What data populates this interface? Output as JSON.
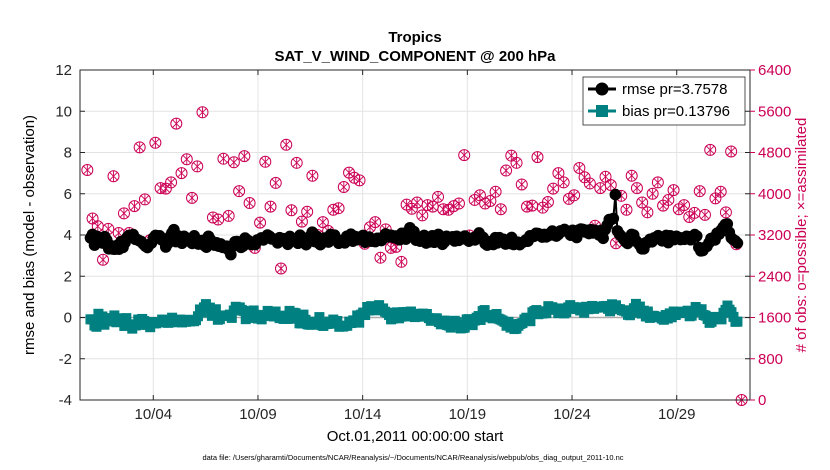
{
  "chart_data": {
    "type": "line",
    "title": "Tropics",
    "subtitle": "SAT_V_WIND_COMPONENT @ 200 hPa",
    "xlabel": "Oct.01,2011 00:00:00 start",
    "ylabel": "rmse and bias (model - observation)",
    "y2label": "# of obs: o=possible; ×=assimilated",
    "footer": "data file: /Users/gharamti/Documents/NCAR/Reanalysis/~/Documents/NCAR/Reanalysis/webpub/obs_diag_output_2011-10.nc",
    "xlim": [
      0.5,
      32.5
    ],
    "ylim": [
      -4,
      12
    ],
    "y2lim": [
      0,
      6400
    ],
    "xticks": [
      {
        "day": 4,
        "label": "10/04"
      },
      {
        "day": 9,
        "label": "10/09"
      },
      {
        "day": 14,
        "label": "10/14"
      },
      {
        "day": 19,
        "label": "10/19"
      },
      {
        "day": 24,
        "label": "10/24"
      },
      {
        "day": 29,
        "label": "10/29"
      }
    ],
    "yticks": [
      "-4",
      "-2",
      "0",
      "2",
      "4",
      "6",
      "8",
      "10",
      "12"
    ],
    "y2ticks": [
      "0",
      "800",
      "1600",
      "2400",
      "3200",
      "4000",
      "4800",
      "5600",
      "6400"
    ],
    "grid": true,
    "legend_position": "top-right",
    "colors": {
      "rmse": "#000000",
      "bias": "#008080",
      "obs": "#cc0055",
      "zero": "#aaaaaa"
    },
    "series": [
      {
        "name": "rmse pr=3.7578",
        "axis": "left",
        "values": [
          3.86,
          4.03,
          3.51,
          3.94,
          3.87,
          3.83,
          3.61,
          3.92,
          3.76,
          3.33,
          3.48,
          3.32,
          3.31,
          3.49,
          3.31,
          3.68,
          3.4,
          3.63,
          3.88,
          3.98,
          3.94,
          4.02,
          3.79,
          3.78,
          3.72,
          3.68,
          3.56,
          3.46,
          3.39,
          3.54,
          3.61,
          3.87,
          3.98,
          3.93,
          3.96,
          3.76,
          3.74,
          3.42,
          3.58,
          3.91,
          4.1,
          4.26,
          3.68,
          3.96,
          3.84,
          3.6,
          3.94,
          3.75,
          3.77,
          3.8,
          3.59,
          3.96,
          3.75,
          3.56,
          3.6,
          3.74,
          3.49,
          3.41,
          3.94,
          3.77,
          3.6,
          3.51,
          3.62,
          3.46,
          3.57,
          3.4,
          3.39,
          3.46,
          3.26,
          3.05,
          3.46,
          3.67,
          3.68,
          3.47,
          3.4,
          3.46,
          3.85,
          3.76,
          3.7,
          3.54,
          3.63,
          3.54,
          3.76,
          3.76,
          3.86,
          3.76,
          3.88,
          4.0,
          3.94,
          3.81,
          3.81,
          3.78,
          3.62,
          3.87,
          3.77,
          3.82,
          3.72,
          3.55,
          3.93,
          3.76,
          3.72,
          3.75,
          3.6,
          3.99,
          3.78,
          3.76,
          3.53,
          3.67,
          3.95,
          4.14,
          3.69,
          3.95,
          3.62,
          3.53,
          3.63,
          3.85,
          3.71,
          3.66,
          4.02,
          3.84,
          3.99,
          3.76,
          3.6,
          3.73,
          3.74,
          3.62,
          3.94,
          3.87,
          4.04,
          3.7,
          3.93,
          3.77,
          3.89,
          3.91,
          3.98,
          3.65,
          3.77,
          3.9,
          3.7,
          3.73,
          3.68,
          3.84,
          3.84,
          3.73,
          3.86,
          4.05,
          3.91,
          3.99,
          3.98,
          3.88,
          3.95,
          3.82,
          3.77,
          4.08,
          4.0,
          3.8,
          4.17,
          4.35,
          4.01,
          4.17,
          3.75,
          3.88,
          3.7,
          3.73,
          3.98,
          3.61,
          3.69,
          3.67,
          3.96,
          3.65,
          3.93,
          4.03,
          3.75,
          3.55,
          3.66,
          3.94,
          3.82,
          3.89,
          3.91,
          3.71,
          3.94,
          3.74,
          3.88,
          3.82,
          3.95,
          3.86,
          3.7,
          3.82,
          3.86,
          3.76,
          3.95,
          4.1,
          3.86,
          3.88,
          3.58,
          3.51,
          3.67,
          3.59,
          3.54,
          3.87,
          3.62,
          3.87,
          3.78,
          3.79,
          3.56,
          3.69,
          3.59,
          3.88,
          3.54,
          3.59,
          3.65,
          3.53,
          3.63,
          3.67,
          3.76,
          3.7,
          3.96,
          3.91,
          3.94,
          4.08,
          4.07,
          4.02,
          3.9,
          4.03,
          3.91,
          3.96,
          4.09,
          4.19,
          3.99,
          3.95,
          4.03,
          4.2,
          4.18,
          4.27,
          4.2,
          4.16,
          3.99,
          4.23,
          4.06,
          3.88,
          4.24,
          4.29,
          4.27,
          4.15,
          4.23,
          4.07,
          4.26,
          4.1,
          4.23,
          4.17,
          4.0,
          4.22,
          3.84,
          4.26,
          4.48,
          4.75,
          4.75,
          4.8,
          5.96,
          4.2,
          4.04,
          3.93,
          3.8,
          3.68,
          3.59,
          3.77,
          4.03,
          4.0,
          3.74,
          3.63,
          3.51,
          3.33,
          3.33,
          3.63,
          3.64,
          3.79,
          3.67,
          3.86,
          3.83,
          3.97,
          3.88,
          3.72,
          3.9,
          3.98,
          3.63,
          3.96,
          3.85,
          3.78,
          3.94,
          3.88,
          3.78,
          3.86,
          3.79,
          3.94,
          3.91,
          3.77,
          3.93,
          4.02,
          3.95,
          3.4,
          3.23,
          3.25,
          3.39,
          3.45,
          3.62,
          3.83,
          3.86,
          3.76,
          4.09,
          4.04,
          4.24,
          4.38,
          4.51,
          4.54,
          4.13,
          3.86,
          3.77,
          3.71,
          3.61
        ]
      },
      {
        "name": "bias pr=0.13796",
        "axis": "left",
        "values": [
          -0.09,
          -0.09,
          -0.39,
          -0.45,
          0.18,
          0.04,
          0.05,
          -0.35,
          -0.12,
          -0.07,
          -0.03,
          -0.19,
          0.1,
          -0.23,
          -0.13,
          -0.04,
          -0.11,
          -0.41,
          -0.03,
          -0.33,
          -0.38,
          -0.54,
          -0.39,
          -0.38,
          -0.1,
          -0.29,
          -0.07,
          -0.17,
          -0.36,
          -0.28,
          -0.47,
          -0.22,
          -0.29,
          -0.28,
          -0.22,
          -0.24,
          -0.1,
          -0.22,
          -0.15,
          -0.26,
          -0.23,
          -0.01,
          -0.23,
          -0.12,
          -0.2,
          -0.1,
          -0.24,
          -0.13,
          -0.21,
          -0.11,
          -0.19,
          -0.14,
          -0.18,
          -0.13,
          0.06,
          0.39,
          0.24,
          0.49,
          0.65,
          0.45,
          0.48,
          0.08,
          0.24,
          0.4,
          -0.11,
          -0.08,
          0.07,
          0.08,
          0.1,
          0.08,
          0.14,
          -0.02,
          0.34,
          0.52,
          0.44,
          0.49,
          0.37,
          0.32,
          -0.08,
          0.06,
          0.27,
          -0.02,
          0.34,
          0.13,
          -0.05,
          0.06,
          -0.09,
          0.07,
          0.12,
          0.32,
          0.2,
          0.15,
          0.05,
          0.29,
          0.05,
          -0.03,
          0.09,
          -0.07,
          -0.06,
          -0.07,
          0.32,
          0.21,
          0.23,
          0.21,
          -0.06,
          -0.28,
          -0.29,
          0.14,
          -0.11,
          -0.33,
          -0.35,
          -0.35,
          -0.25,
          -0.2,
          -0.22,
          0.02,
          -0.37,
          -0.41,
          -0.32,
          -0.31,
          -0.2,
          -0.22,
          -0.1,
          -0.3,
          -0.17,
          -0.45,
          -0.43,
          -0.44,
          -0.4,
          -0.4,
          -0.2,
          -0.27,
          -0.14,
          -0.2,
          0.1,
          -0.25,
          0.14,
          0.24,
          0.12,
          0.51,
          0.34,
          0.55,
          0.48,
          0.48,
          0.35,
          0.6,
          0.36,
          0.44,
          0.28,
          0.23,
          0.12,
          -0.09,
          -0.05,
          0.01,
          0.25,
          -0.04,
          0.04,
          0.26,
          0.25,
          0.27,
          0.05,
          0.29,
          0.1,
          0.02,
          0.18,
          0.04,
          0.17,
          0.19,
          0.13,
          0.17,
          -0.03,
          -0.16,
          -0.1,
          -0.04,
          -0.04,
          -0.22,
          -0.33,
          -0.16,
          -0.15,
          -0.36,
          -0.39,
          -0.49,
          -0.25,
          -0.16,
          -0.23,
          -0.36,
          -0.53,
          -0.51,
          -0.49,
          -0.09,
          -0.08,
          -0.13,
          -0.37,
          -0.15,
          -0.01,
          0.07,
          -0.12,
          0.31,
          0.36,
          0.07,
          0.12,
          0.01,
          -0.04,
          0.06,
          0.17,
          -0.06,
          -0.1,
          -0.15,
          -0.21,
          -0.4,
          -0.21,
          -0.49,
          -0.32,
          -0.56,
          -0.54,
          -0.4,
          -0.31,
          -0.27,
          -0.09,
          -0.01,
          -0.14,
          -0.18,
          0.25,
          0.31,
          0.36,
          0.16,
          0.23,
          0.19,
          0.3,
          0.21,
          0.55,
          0.37,
          0.5,
          0.4,
          0.42,
          0.21,
          0.44,
          0.3,
          0.2,
          0.26,
          0.49,
          0.6,
          0.45,
          0.5,
          0.41,
          0.49,
          0.34,
          0.4,
          0.23,
          0.52,
          0.4,
          0.43,
          0.56,
          0.42,
          0.48,
          0.53,
          0.48,
          0.52,
          0.55,
          0.56,
          0.42,
          0.3,
          0.64,
          0.43,
          0.59,
          0.41,
          0.4,
          0.35,
          0.33,
          0.29,
          0.13,
          0.11,
          0.35,
          0.45,
          0.66,
          0.23,
          0.53,
          0.19,
          0.33,
          0.05,
          0.29,
          -0.02,
          0.08,
          0.08,
          0.03,
          0.01,
          0.04,
          -0.05,
          -0.11,
          0.12,
          -0.05,
          0.2,
          0.01,
          0.29,
          0.12,
          0.21,
          0.27,
          0.22,
          0.28,
          0.28,
          0.33,
          0.06,
          0.09,
          0.25,
          0.51,
          0.4,
          0.32,
          0.4,
          0.12,
          0.09,
          -0.07,
          -0.26,
          -0.21,
          -0.08,
          0.03,
          -0.01,
          0.02,
          -0.09,
          0.23,
          0.37,
          0.58,
          0.38,
          0.26,
          0.03,
          -0.21,
          -0.2
        ]
      },
      {
        "name": "# of obs possible / assimilated",
        "axis": "right",
        "points": [
          [
            0.85,
            4460
          ],
          [
            1.1,
            3520
          ],
          [
            1.35,
            3370
          ],
          [
            1.6,
            2720
          ],
          [
            1.85,
            3320
          ],
          [
            2.1,
            4340
          ],
          [
            2.35,
            3240
          ],
          [
            2.6,
            3620
          ],
          [
            2.85,
            3240
          ],
          [
            3.1,
            3760
          ],
          [
            3.35,
            4900
          ],
          [
            3.6,
            3890
          ],
          [
            3.85,
            3100
          ],
          [
            4.1,
            4990
          ],
          [
            4.35,
            4110
          ],
          [
            4.6,
            4100
          ],
          [
            4.85,
            4220
          ],
          [
            5.1,
            5360
          ],
          [
            5.35,
            4400
          ],
          [
            5.6,
            4670
          ],
          [
            5.85,
            3920
          ],
          [
            6.1,
            4530
          ],
          [
            6.35,
            5580
          ],
          [
            6.6,
            3070
          ],
          [
            6.85,
            3540
          ],
          [
            7.1,
            3500
          ],
          [
            7.35,
            4680
          ],
          [
            7.6,
            3570
          ],
          [
            7.85,
            4610
          ],
          [
            8.1,
            4050
          ],
          [
            8.35,
            4730
          ],
          [
            8.6,
            3820
          ],
          [
            8.85,
            2950
          ],
          [
            9.1,
            3440
          ],
          [
            9.35,
            4620
          ],
          [
            9.6,
            3750
          ],
          [
            9.85,
            4210
          ],
          [
            10.1,
            2550
          ],
          [
            10.35,
            4950
          ],
          [
            10.6,
            3680
          ],
          [
            10.85,
            4600
          ],
          [
            11.1,
            3460
          ],
          [
            11.35,
            3650
          ],
          [
            11.6,
            4350
          ],
          [
            11.85,
            3200
          ],
          [
            12.1,
            3450
          ],
          [
            12.35,
            3280
          ],
          [
            12.6,
            3690
          ],
          [
            12.85,
            3720
          ],
          [
            13.1,
            4130
          ],
          [
            13.35,
            4410
          ],
          [
            13.6,
            4310
          ],
          [
            13.85,
            4260
          ],
          [
            14.1,
            3030
          ],
          [
            14.35,
            3350
          ],
          [
            14.6,
            3450
          ],
          [
            14.85,
            2760
          ],
          [
            15.1,
            3310
          ],
          [
            15.35,
            2950
          ],
          [
            15.6,
            2970
          ],
          [
            15.85,
            2680
          ],
          [
            16.1,
            3790
          ],
          [
            16.35,
            3710
          ],
          [
            16.6,
            3830
          ],
          [
            16.85,
            3580
          ],
          [
            17.1,
            3780
          ],
          [
            17.35,
            3750
          ],
          [
            17.6,
            3940
          ],
          [
            17.85,
            3700
          ],
          [
            18.1,
            3690
          ],
          [
            18.35,
            3760
          ],
          [
            18.6,
            3810
          ],
          [
            18.85,
            4750
          ],
          [
            19.1,
            3190
          ],
          [
            19.35,
            3880
          ],
          [
            19.6,
            3970
          ],
          [
            19.85,
            3810
          ],
          [
            20.1,
            3860
          ],
          [
            20.35,
            4040
          ],
          [
            20.6,
            3700
          ],
          [
            20.85,
            4450
          ],
          [
            21.1,
            4740
          ],
          [
            21.35,
            4600
          ],
          [
            21.6,
            4180
          ],
          [
            21.85,
            3750
          ],
          [
            22.1,
            3770
          ],
          [
            22.35,
            4710
          ],
          [
            22.6,
            3730
          ],
          [
            22.85,
            3840
          ],
          [
            23.1,
            4100
          ],
          [
            23.35,
            4400
          ],
          [
            23.6,
            4220
          ],
          [
            23.85,
            3900
          ],
          [
            24.1,
            3970
          ],
          [
            24.35,
            4500
          ],
          [
            24.6,
            4320
          ],
          [
            24.85,
            4200
          ],
          [
            25.1,
            3380
          ],
          [
            25.35,
            4110
          ],
          [
            25.6,
            4330
          ],
          [
            25.85,
            4170
          ],
          [
            26.1,
            3040
          ],
          [
            26.35,
            3960
          ],
          [
            26.6,
            3690
          ],
          [
            26.85,
            4350
          ],
          [
            27.1,
            4110
          ],
          [
            27.35,
            3830
          ],
          [
            27.6,
            3640
          ],
          [
            27.85,
            4000
          ],
          [
            28.1,
            4220
          ],
          [
            28.35,
            3770
          ],
          [
            28.6,
            3880
          ],
          [
            28.85,
            4070
          ],
          [
            29.1,
            3700
          ],
          [
            29.35,
            3780
          ],
          [
            29.6,
            3550
          ],
          [
            29.85,
            3630
          ],
          [
            30.1,
            4050
          ],
          [
            30.35,
            3590
          ],
          [
            30.6,
            4850
          ],
          [
            30.85,
            3910
          ],
          [
            31.1,
            4040
          ],
          [
            31.35,
            3640
          ],
          [
            31.6,
            4820
          ],
          [
            31.85,
            3020
          ],
          [
            32.1,
            0
          ]
        ]
      }
    ]
  }
}
